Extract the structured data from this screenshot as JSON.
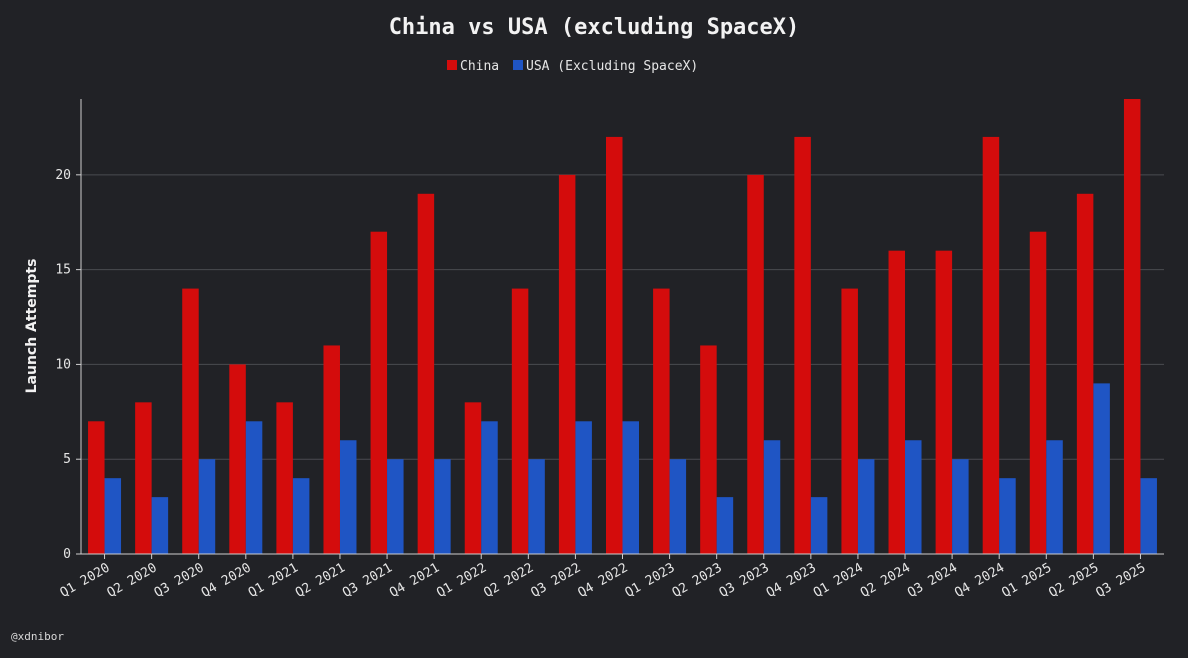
{
  "colors": {
    "background": "#212226",
    "china": "#d40c0c",
    "usa": "#1f55c4",
    "grid": "#4a4b50",
    "axis": "#cfcfcf"
  },
  "credit": "@xdnibor",
  "chart_data": {
    "type": "bar",
    "title": "China vs USA (excluding SpaceX)",
    "xlabel": "",
    "ylabel": "Launch Attempts",
    "ylim": [
      0,
      24
    ],
    "yticks": [
      0,
      5,
      10,
      15,
      20
    ],
    "grid": true,
    "legend_position": "top-center",
    "categories": [
      "Q1 2020",
      "Q2 2020",
      "Q3 2020",
      "Q4 2020",
      "Q1 2021",
      "Q2 2021",
      "Q3 2021",
      "Q4 2021",
      "Q1 2022",
      "Q2 2022",
      "Q3 2022",
      "Q4 2022",
      "Q1 2023",
      "Q2 2023",
      "Q3 2023",
      "Q4 2023",
      "Q1 2024",
      "Q2 2024",
      "Q3 2024",
      "Q4 2024",
      "Q1 2025",
      "Q2 2025",
      "Q3 2025"
    ],
    "series": [
      {
        "name": "China",
        "color": "#d40c0c",
        "values": [
          7,
          8,
          14,
          10,
          8,
          11,
          17,
          19,
          8,
          14,
          20,
          22,
          14,
          11,
          20,
          22,
          14,
          16,
          16,
          22,
          17,
          19,
          24
        ]
      },
      {
        "name": "USA (Excluding SpaceX)",
        "color": "#1f55c4",
        "values": [
          4,
          3,
          5,
          7,
          4,
          6,
          5,
          5,
          7,
          5,
          7,
          7,
          5,
          3,
          6,
          3,
          5,
          6,
          5,
          4,
          6,
          9,
          4
        ]
      }
    ]
  }
}
